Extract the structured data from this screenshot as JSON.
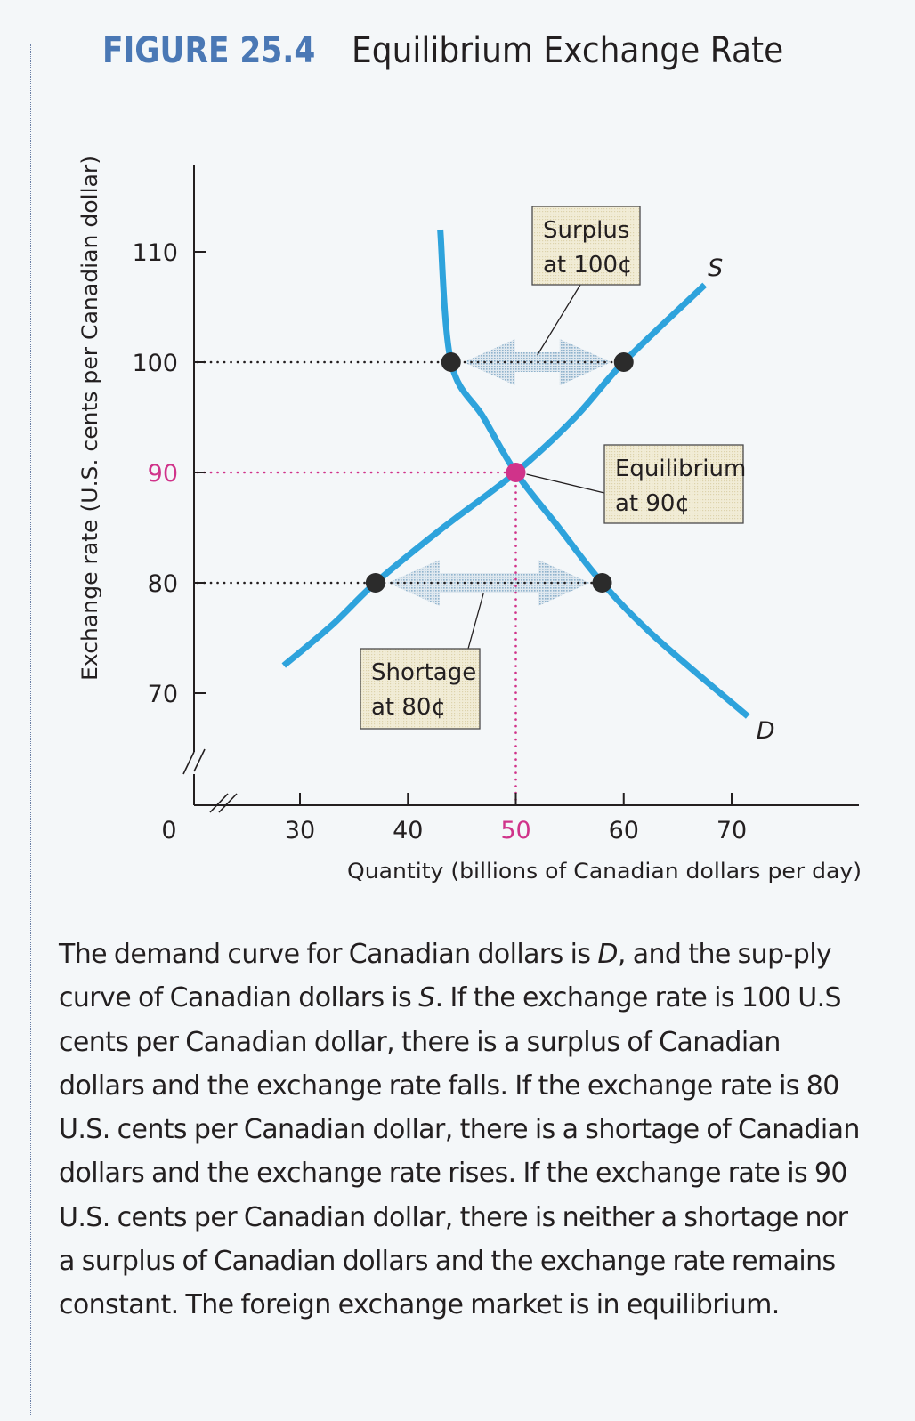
{
  "figure": {
    "number": "FIGURE 25.4",
    "title": "Equilibrium Exchange Rate"
  },
  "chart_data": {
    "type": "line",
    "title": "Equilibrium Exchange Rate",
    "xlabel": "Quantity (billions of Canadian dollars per day)",
    "ylabel": "Exchange rate (U.S. cents per Canadian dollar)",
    "xlim": [
      25,
      78
    ],
    "ylim": [
      65,
      115
    ],
    "axis_break": true,
    "origin_label": "0",
    "x_ticks": [
      30,
      40,
      50,
      60,
      70
    ],
    "y_ticks": [
      70,
      80,
      90,
      100,
      110
    ],
    "highlight_x_tick": 50,
    "highlight_y_tick": 90,
    "grid": false,
    "series": [
      {
        "name": "D",
        "label": "D",
        "kind": "demand",
        "points": [
          [
            43.0,
            112.0
          ],
          [
            44.0,
            100.0
          ],
          [
            47.0,
            95.0
          ],
          [
            50.0,
            90.0
          ],
          [
            54.0,
            85.0
          ],
          [
            58.0,
            80.0
          ],
          [
            63.0,
            75.0
          ],
          [
            71.5,
            67.9
          ]
        ]
      },
      {
        "name": "S",
        "label": "S",
        "kind": "supply",
        "points": [
          [
            28.5,
            72.5
          ],
          [
            33.0,
            76.2
          ],
          [
            37.0,
            80.0
          ],
          [
            43.0,
            84.8
          ],
          [
            50.0,
            90.0
          ],
          [
            55.5,
            95.0
          ],
          [
            60.0,
            100.0
          ],
          [
            67.5,
            107.0
          ]
        ]
      }
    ],
    "reference_lines": [
      {
        "name": "rate-100",
        "y": 100,
        "x_to": 60,
        "color": "#231f20"
      },
      {
        "name": "rate-90",
        "y": 90,
        "x_to": 50,
        "color": "#d0338a"
      },
      {
        "name": "rate-80",
        "y": 80,
        "x_to": 58,
        "color": "#231f20"
      },
      {
        "name": "quantity-50",
        "x": 50,
        "y_to": 90,
        "color": "#d0338a"
      }
    ],
    "points": [
      {
        "name": "demand-at-100",
        "x": 44,
        "y": 100,
        "color": "#2b2b2b"
      },
      {
        "name": "supply-at-100",
        "x": 60,
        "y": 100,
        "color": "#2b2b2b"
      },
      {
        "name": "equilibrium",
        "x": 50,
        "y": 90,
        "color": "#d0338a"
      },
      {
        "name": "supply-at-80",
        "x": 37,
        "y": 80,
        "color": "#2b2b2b"
      },
      {
        "name": "demand-at-80",
        "x": 58,
        "y": 80,
        "color": "#2b2b2b"
      }
    ],
    "gap_arrows": [
      {
        "name": "surplus-arrow",
        "y": 100,
        "x_from": 44,
        "x_to": 60
      },
      {
        "name": "shortage-arrow",
        "y": 80,
        "x_from": 37,
        "x_to": 58
      }
    ],
    "annotations": [
      {
        "name": "surplus-callout",
        "lines": [
          "Surplus",
          "at 100¢"
        ],
        "points_to": [
          52,
          100
        ]
      },
      {
        "name": "equilibrium-callout",
        "lines": [
          "Equilibrium",
          "at 90¢"
        ],
        "points_to": [
          50,
          90
        ]
      },
      {
        "name": "shortage-callout",
        "lines": [
          "Shortage",
          "at 80¢"
        ],
        "points_to": [
          47,
          80
        ]
      }
    ],
    "colors": {
      "curve": "#2ea3dc",
      "highlight": "#d0338a",
      "dot": "#2b2b2b",
      "arrow": "#b5cde0",
      "callout_fill": "#efe9cf",
      "axis": "#231f20"
    }
  },
  "caption": {
    "s1": "The demand curve for Canadian dollars is ",
    "d": "D",
    "s2": ", and the sup-ply curve of Canadian dollars is ",
    "s": "S",
    "s3": ". If the exchange rate is 100 U.S cents per Canadian dollar, there is a surplus of Canadian dollars and the exchange rate falls. If the exchange rate is 80 U.S. cents per Canadian dollar, there is a shortage of Canadian dollars and the exchange rate rises. If the exchange rate is 90 U.S. cents per Canadian dollar, there is neither a shortage nor a surplus of Canadian dollars and the exchange rate remains constant. The foreign exchange market is in equilibrium."
  }
}
